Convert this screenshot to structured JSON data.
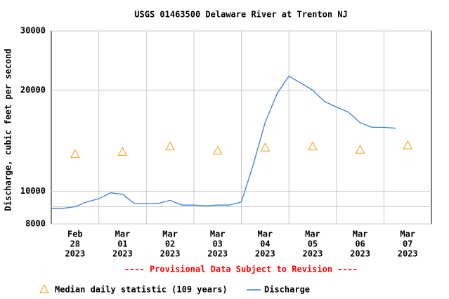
{
  "chart_data": {
    "type": "line",
    "title": "USGS 01463500 Delaware River at Trenton NJ",
    "subtitle": "---- Provisional Data Subject to Revision ----",
    "y_label": "Discharge, cubic feet per second",
    "y_log": true,
    "ylim": [
      8000,
      30000
    ],
    "yticks": [
      8000,
      10000,
      20000,
      30000
    ],
    "y_minor_gridlines": [
      9000
    ],
    "xlim": [
      "2023-02-28T00:00",
      "2023-03-08T00:00"
    ],
    "categories": [
      [
        "Feb",
        "28",
        "2023"
      ],
      [
        "Mar",
        "01",
        "2023"
      ],
      [
        "Mar",
        "02",
        "2023"
      ],
      [
        "Mar",
        "03",
        "2023"
      ],
      [
        "Mar",
        "04",
        "2023"
      ],
      [
        "Mar",
        "05",
        "2023"
      ],
      [
        "Mar",
        "06",
        "2023"
      ],
      [
        "Mar",
        "07",
        "2023"
      ]
    ],
    "grid": true,
    "median": {
      "name": "Median daily statistic (109 years)",
      "color": "#f39c12",
      "values": [
        12900,
        13100,
        13600,
        13200,
        13500,
        13600,
        13300,
        13700
      ]
    },
    "series": [
      {
        "name": "Discharge",
        "color": "#3a7fd5",
        "x": [
          "2023-02-28T00:00",
          "2023-02-28T06:00",
          "2023-02-28T12:00",
          "2023-02-28T18:00",
          "2023-03-01T00:00",
          "2023-03-01T06:00",
          "2023-03-01T12:00",
          "2023-03-01T18:00",
          "2023-03-02T00:00",
          "2023-03-02T06:00",
          "2023-03-02T12:00",
          "2023-03-02T18:00",
          "2023-03-03T00:00",
          "2023-03-03T06:00",
          "2023-03-03T12:00",
          "2023-03-03T18:00",
          "2023-03-04T00:00",
          "2023-03-04T06:00",
          "2023-03-04T12:00",
          "2023-03-04T18:00",
          "2023-03-05T00:00",
          "2023-03-05T06:00",
          "2023-03-05T12:00",
          "2023-03-05T18:00",
          "2023-03-06T00:00",
          "2023-03-06T06:00",
          "2023-03-06T12:00",
          "2023-03-06T18:00",
          "2023-03-07T00:00",
          "2023-03-07T06:00"
        ],
        "values": [
          8900,
          8900,
          9000,
          9300,
          9500,
          9900,
          9800,
          9200,
          9200,
          9200,
          9400,
          9100,
          9100,
          9050,
          9100,
          9100,
          9300,
          12000,
          16000,
          19500,
          22000,
          21000,
          20000,
          18500,
          17800,
          17200,
          16000,
          15500,
          15500,
          15400
        ]
      }
    ]
  }
}
